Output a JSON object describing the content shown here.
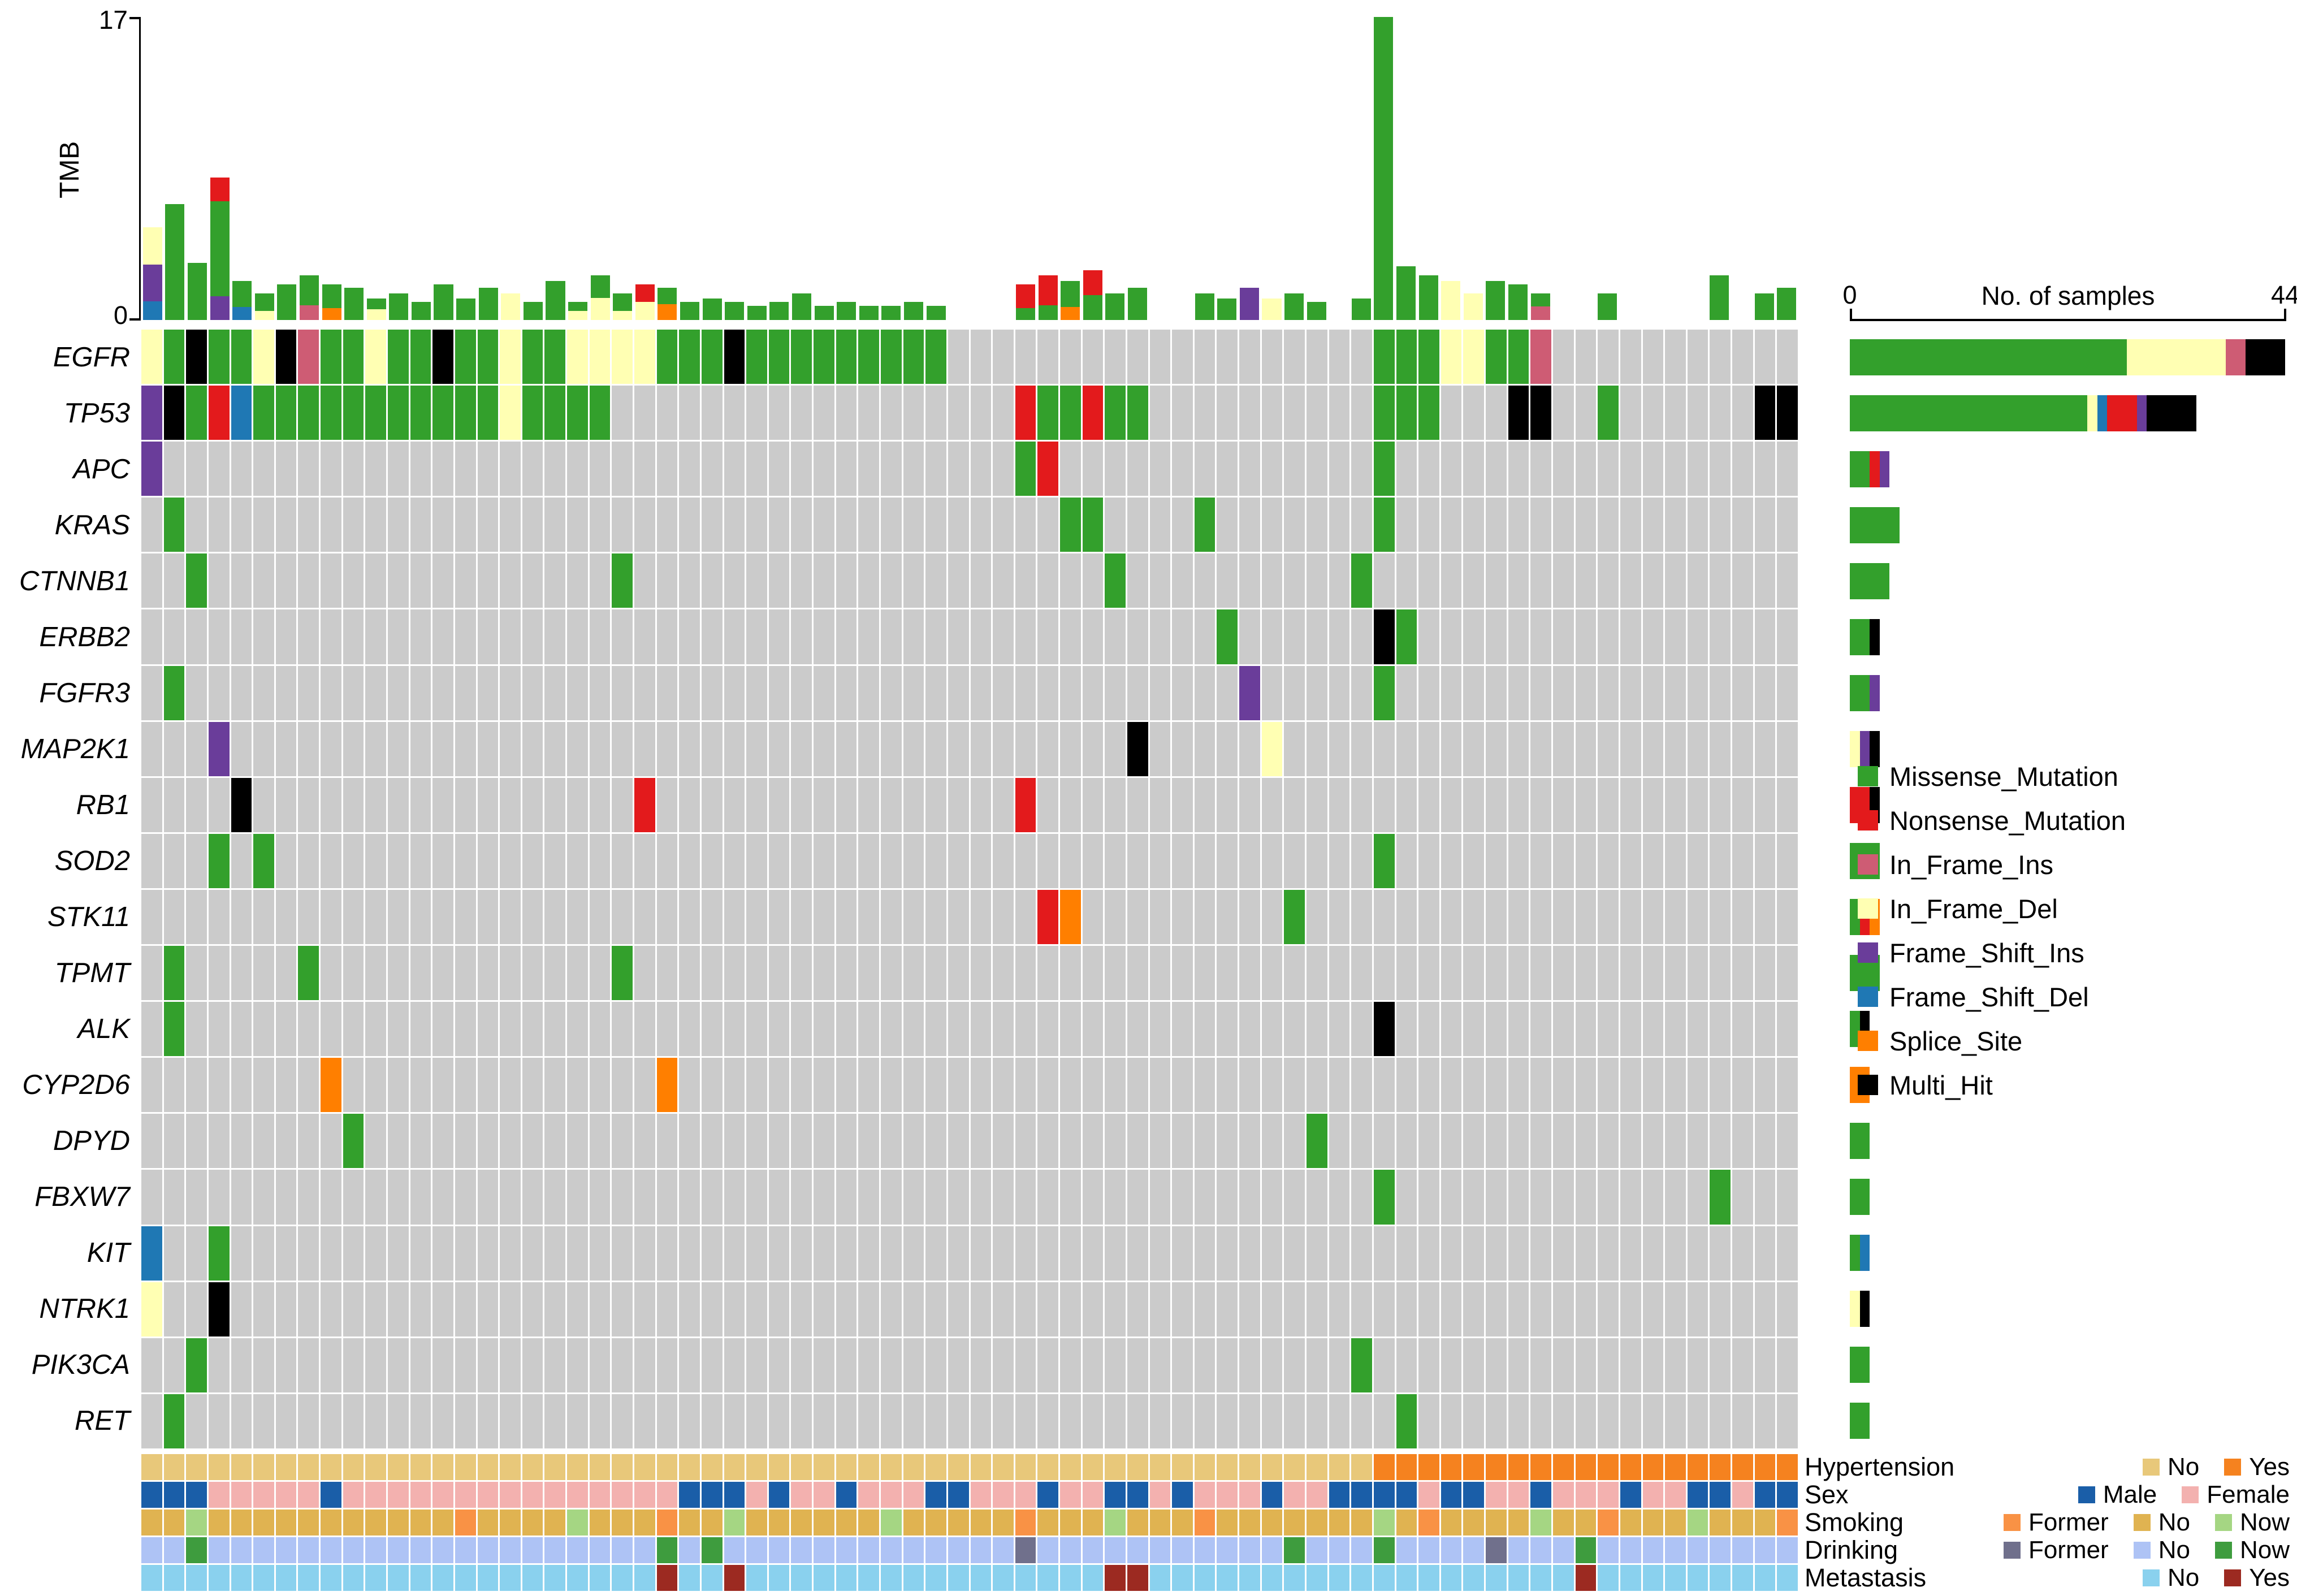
{
  "chart_data": {
    "type": "heatmap",
    "subtype": "oncoplot",
    "sample_count": 74,
    "background_color": "#CBCBCB",
    "tmb": {
      "title": "TMB",
      "ymin": "0",
      "ymax": "17",
      "ymax_value": 17,
      "values": [
        5.2,
        6.5,
        3.2,
        8.0,
        2.2,
        1.5,
        2.0,
        2.5,
        2.0,
        1.8,
        1.2,
        1.5,
        1.0,
        2.0,
        1.2,
        1.8,
        1.5,
        1.0,
        2.2,
        1.0,
        2.5,
        1.5,
        2.0,
        1.8,
        1.0,
        1.2,
        1.0,
        0.8,
        1.0,
        1.5,
        0.8,
        1.0,
        0.8,
        0.8,
        1.0,
        0.8,
        0.6,
        0.8,
        0.6,
        2.0,
        2.5,
        2.2,
        2.8,
        1.5,
        1.8,
        0.8,
        1.0,
        1.5,
        1.2,
        1.8,
        1.2,
        1.5,
        1.0,
        0.8,
        1.2,
        17.0,
        3.0,
        2.5,
        2.2,
        1.5,
        2.2,
        2.0,
        1.5,
        1.0,
        1.2,
        1.5,
        1.0,
        1.2,
        1.5,
        2.0,
        2.5,
        1.2,
        1.5,
        1.8
      ]
    },
    "samples_axis": {
      "title": "No. of samples",
      "min_label": "0",
      "max_label": "44",
      "max": 44
    },
    "mutation_types": [
      {
        "code": "M",
        "label": "Missense_Mutation",
        "color": "#33A02C"
      },
      {
        "code": "N",
        "label": "Nonsense_Mutation",
        "color": "#E31A1C"
      },
      {
        "code": "II",
        "label": "In_Frame_Ins",
        "color": "#CE5C74"
      },
      {
        "code": "ID",
        "label": "In_Frame_Del",
        "color": "#FFFFB3"
      },
      {
        "code": "FI",
        "label": "Frame_Shift_Ins",
        "color": "#6A3D9A"
      },
      {
        "code": "FD",
        "label": "Frame_Shift_Del",
        "color": "#1F78B4"
      },
      {
        "code": "S",
        "label": "Splice_Site",
        "color": "#FF7F00"
      },
      {
        "code": "MH",
        "label": "Multi_Hit",
        "color": "#000000"
      }
    ],
    "genes": [
      {
        "name": "EGFR",
        "mutations": {
          "1": "ID",
          "2": "M",
          "3": "MH",
          "4": "M",
          "5": "M",
          "6": "ID",
          "7": "MH",
          "8": "II",
          "9": "M",
          "10": "M",
          "11": "ID",
          "12": "M",
          "13": "M",
          "14": "MH",
          "15": "M",
          "16": "M",
          "17": "ID",
          "18": "M",
          "19": "M",
          "20": "ID",
          "21": "ID",
          "22": "ID",
          "23": "ID",
          "24": "M",
          "25": "M",
          "26": "M",
          "27": "MH",
          "28": "M",
          "29": "M",
          "30": "M",
          "31": "M",
          "32": "M",
          "33": "M",
          "34": "M",
          "35": "M",
          "36": "M",
          "56": "M",
          "57": "M",
          "58": "M",
          "59": "ID",
          "60": "ID",
          "61": "M",
          "62": "M",
          "63": "II"
        }
      },
      {
        "name": "TP53",
        "mutations": {
          "1": "FI",
          "2": "MH",
          "3": "M",
          "4": "N",
          "5": "FD",
          "6": "M",
          "7": "M",
          "8": "M",
          "9": "M",
          "10": "M",
          "11": "M",
          "12": "M",
          "13": "M",
          "14": "M",
          "15": "M",
          "16": "M",
          "17": "ID",
          "18": "M",
          "19": "M",
          "20": "M",
          "21": "M",
          "40": "N",
          "41": "M",
          "42": "M",
          "43": "N",
          "44": "M",
          "45": "M",
          "56": "M",
          "57": "M",
          "58": "M",
          "62": "MH",
          "63": "MH",
          "66": "M",
          "73": "MH",
          "74": "MH"
        }
      },
      {
        "name": "APC",
        "mutations": {
          "1": "FI",
          "40": "M",
          "41": "N",
          "56": "M"
        }
      },
      {
        "name": "KRAS",
        "mutations": {
          "2": "M",
          "42": "M",
          "43": "M",
          "48": "M",
          "56": "M"
        }
      },
      {
        "name": "CTNNB1",
        "mutations": {
          "3": "M",
          "22": "M",
          "44": "M",
          "55": "M"
        }
      },
      {
        "name": "ERBB2",
        "mutations": {
          "49": "M",
          "56": "MH",
          "57": "M"
        }
      },
      {
        "name": "FGFR3",
        "mutations": {
          "2": "M",
          "50": "FI",
          "56": "M"
        }
      },
      {
        "name": "MAP2K1",
        "mutations": {
          "4": "FI",
          "45": "MH",
          "51": "ID"
        }
      },
      {
        "name": "RB1",
        "mutations": {
          "5": "MH",
          "23": "N",
          "40": "N"
        }
      },
      {
        "name": "SOD2",
        "mutations": {
          "4": "M",
          "6": "M",
          "56": "M"
        }
      },
      {
        "name": "STK11",
        "mutations": {
          "41": "N",
          "42": "S",
          "52": "M"
        }
      },
      {
        "name": "TPMT",
        "mutations": {
          "2": "M",
          "8": "M",
          "22": "M"
        }
      },
      {
        "name": "ALK",
        "mutations": {
          "2": "M",
          "56": "MH"
        }
      },
      {
        "name": "CYP2D6",
        "mutations": {
          "9": "S",
          "24": "S"
        }
      },
      {
        "name": "DPYD",
        "mutations": {
          "10": "M",
          "53": "M"
        }
      },
      {
        "name": "FBXW7",
        "mutations": {
          "56": "M",
          "71": "M"
        }
      },
      {
        "name": "KIT",
        "mutations": {
          "1": "FD",
          "4": "M"
        }
      },
      {
        "name": "NTRK1",
        "mutations": {
          "1": "ID",
          "4": "MH"
        }
      },
      {
        "name": "PIK3CA",
        "mutations": {
          "3": "M",
          "55": "M"
        }
      },
      {
        "name": "RET",
        "mutations": {
          "2": "M",
          "57": "M"
        }
      }
    ],
    "clinical_tracks": [
      {
        "name": "Hypertension",
        "values": "NNNNNNNNNNNNNNNNNNNNNNNNNNNNNNNNNNNNNNNNNNNNNNNNNNNNNNNYYYYYYYYYYYYYYYYYYY",
        "legend": [
          {
            "code": "N",
            "label": "No",
            "color": "#E8C87A"
          },
          {
            "code": "Y",
            "label": "Yes",
            "color": "#F5821F"
          }
        ]
      },
      {
        "name": "Sex",
        "values": "MMMFFFFFMFFFFFFFFFFFFFFFMMMFMFFMFFFMMFFFMFFMMFMFFFMFFMMMMFMMFFMFFFMFFMMFMM",
        "legend": [
          {
            "code": "M",
            "label": "Male",
            "color": "#1A5EA8"
          },
          {
            "code": "F",
            "label": "Female",
            "color": "#F3B1AF"
          }
        ]
      },
      {
        "name": "Smoking",
        "values": "NNWNNNNNNNNNNNFNNNNWNNNFNNWNNNNNNWNNNNNFNNNWNNNFNNNNNNNWNFNNNNWNNFNNNWNNNF",
        "legend": [
          {
            "code": "F",
            "label": "Former",
            "color": "#F99245"
          },
          {
            "code": "N",
            "label": "No",
            "color": "#E0B351"
          },
          {
            "code": "W",
            "label": "Now",
            "color": "#A5D683"
          }
        ]
      },
      {
        "name": "Drinking",
        "values": "NNWNNNNNNNNNNNNNNNNNNNNWNWNNNNNNNNNNNNNFNNNNNNNNNNNWNNNWNNNNFNNNWNNNNNNNNN",
        "legend": [
          {
            "code": "F",
            "label": "Former",
            "color": "#70708C"
          },
          {
            "code": "N",
            "label": "No",
            "color": "#AEC3F5"
          },
          {
            "code": "W",
            "label": "Now",
            "color": "#3E9C3E"
          }
        ]
      },
      {
        "name": "Metastasis",
        "values": "NNNNNNNNNNNNNNNNNNNNNNNYNNYNNNNNNNNNNNNNNNNYYNNNNNNNNNNNNNNNNNNNYNNNNNNNNN",
        "legend": [
          {
            "code": "N",
            "label": "No",
            "color": "#8AD1EE"
          },
          {
            "code": "Y",
            "label": "Yes",
            "color": "#9C2A21"
          }
        ]
      }
    ]
  }
}
